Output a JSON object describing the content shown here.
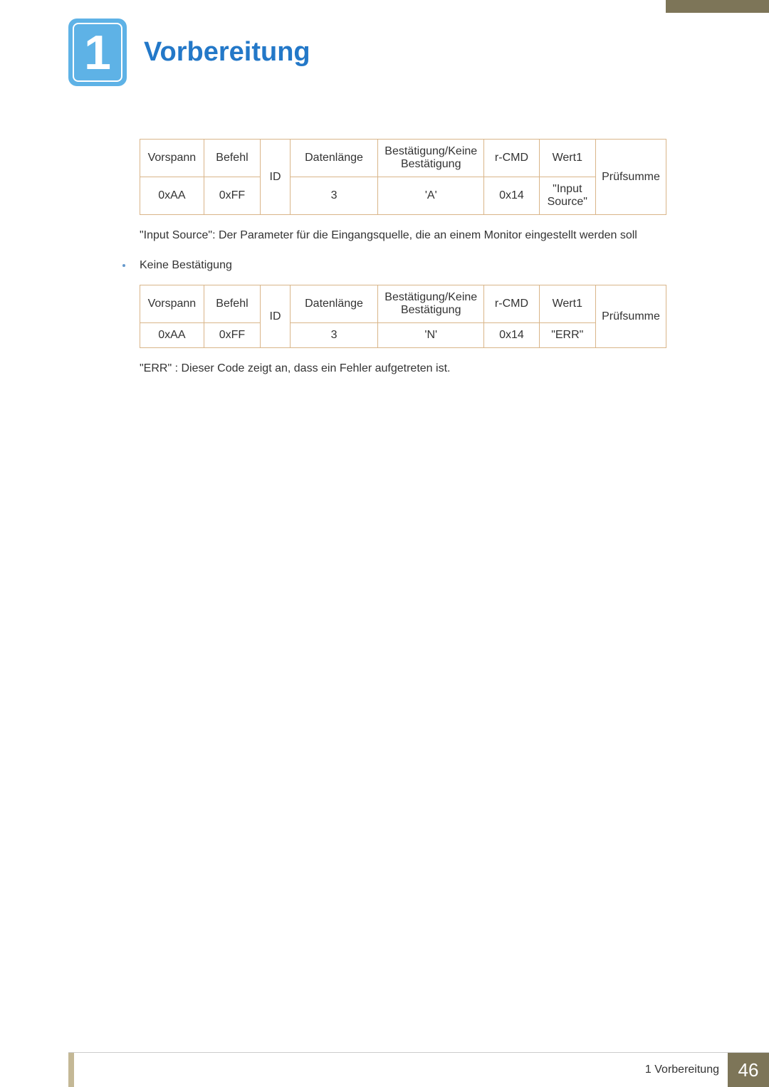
{
  "chapter": {
    "number": "1",
    "title": "Vorbereitung"
  },
  "table1": {
    "headers": {
      "vorspann": "Vorspann",
      "befehl": "Befehl",
      "id": "ID",
      "datenlange": "Datenlänge",
      "bestatigung": "Bestätigung/Keine Bestätigung",
      "rcmd": "r-CMD",
      "wert1": "Wert1",
      "prufsumme": "Prüfsumme"
    },
    "row": {
      "vorspann": "0xAA",
      "befehl": "0xFF",
      "datenlange": "3",
      "bestatigung": "'A'",
      "rcmd": "0x14",
      "wert1": "\"Input Source\""
    }
  },
  "description1": "\"Input Source\": Der Parameter für die Eingangsquelle, die an einem Monitor eingestellt werden soll",
  "bullet1": "Keine Bestätigung",
  "table2": {
    "headers": {
      "vorspann": "Vorspann",
      "befehl": "Befehl",
      "id": "ID",
      "datenlange": "Datenlänge",
      "bestatigung": "Bestätigung/Keine Bestätigung",
      "rcmd": "r-CMD",
      "wert1": "Wert1",
      "prufsumme": "Prüfsumme"
    },
    "row": {
      "vorspann": "0xAA",
      "befehl": "0xFF",
      "datenlange": "3",
      "bestatigung": "'N'",
      "rcmd": "0x14",
      "wert1": "\"ERR\""
    }
  },
  "description2": "\"ERR\" : Dieser Code zeigt an, dass ein Fehler aufgetreten ist.",
  "footer": {
    "text": "1 Vorbereitung",
    "page": "46"
  }
}
